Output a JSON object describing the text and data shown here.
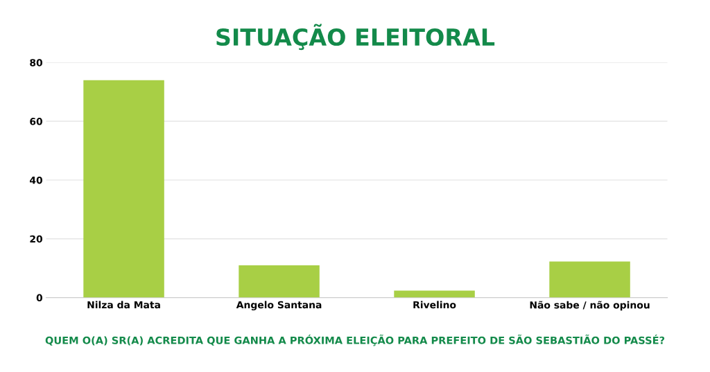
{
  "chart_data": {
    "type": "bar",
    "title": "SITUAÇÃO ELEITORAL",
    "categories": [
      "Nilza da Mata",
      "Angelo Santana",
      "Rivelino",
      "Não sabe / não opinou"
    ],
    "values": [
      74,
      11,
      2.4,
      12.3
    ],
    "color": "#a8cf45",
    "ylim": [
      0,
      80
    ],
    "yticks": [
      0,
      20,
      40,
      60,
      80
    ],
    "grid": "y",
    "annotations": [
      "QUEM O(A) SR(A) ACREDITA QUE GANHA A PRÓXIMA ELEIÇÃO PARA PREFEITO DE SÃO SEBASTIÃO DO PASSÉ?"
    ]
  }
}
